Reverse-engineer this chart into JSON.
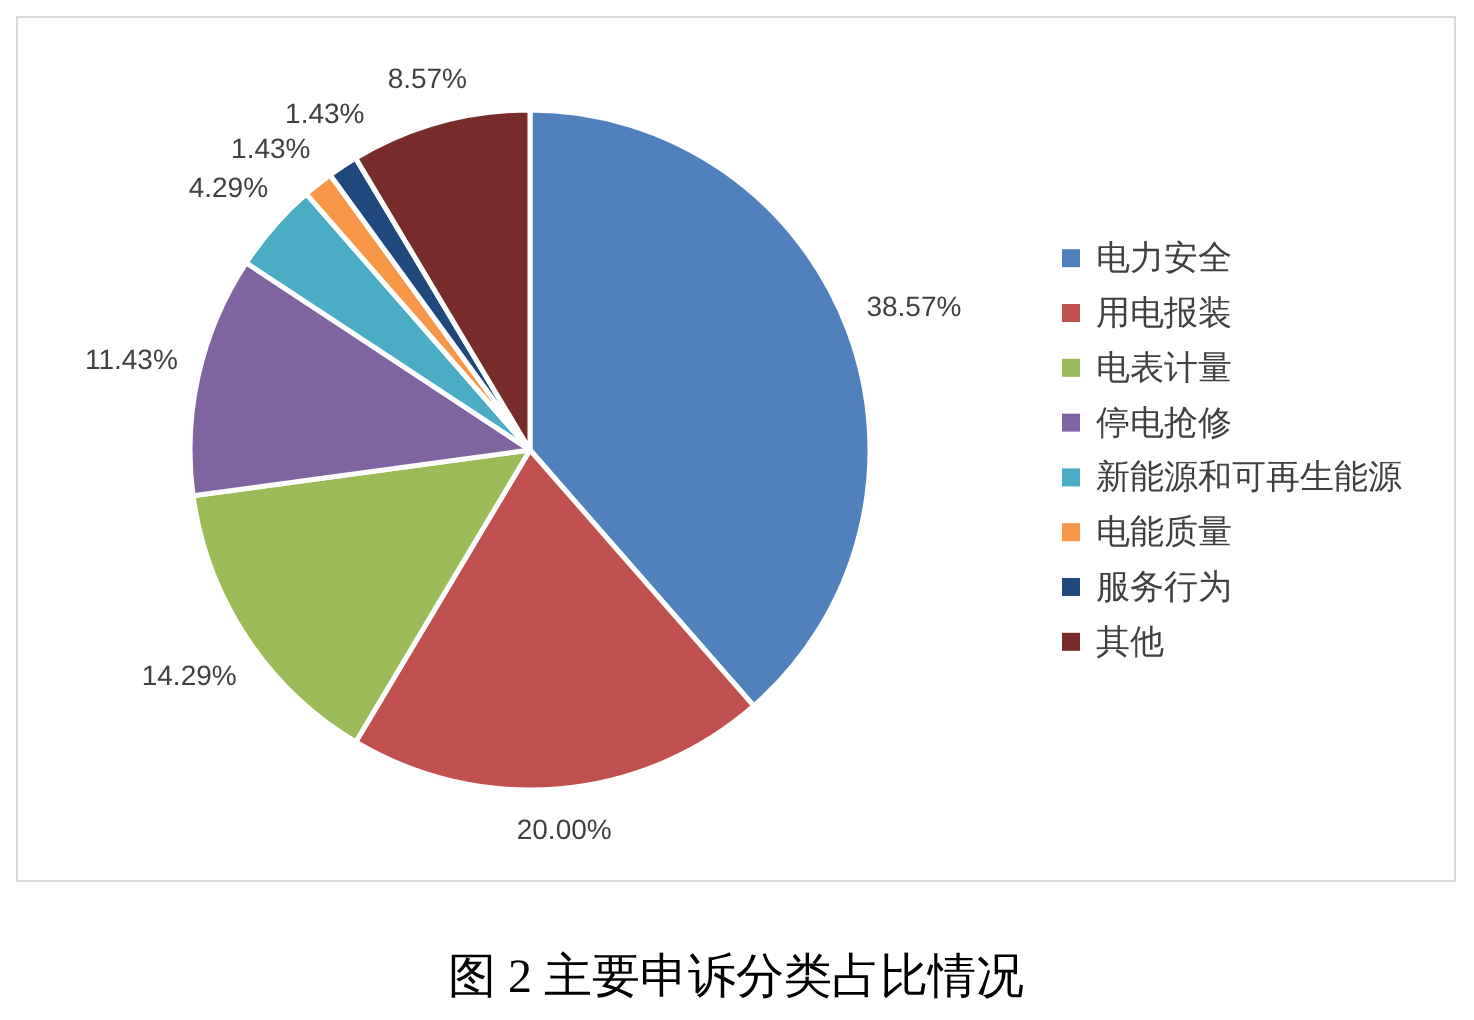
{
  "chart_data": {
    "type": "pie",
    "title": "图 2 主要申诉分类占比情况",
    "categories": [
      "电力安全",
      "用电报装",
      "电表计量",
      "停电抢修",
      "新能源和可再生能源",
      "电能质量",
      "服务行为",
      "其他"
    ],
    "values": [
      38.57,
      20.0,
      14.29,
      11.43,
      4.29,
      1.43,
      1.43,
      8.57
    ],
    "colors": [
      "#4f81bd",
      "#c0504d",
      "#9bbb59",
      "#8064a2",
      "#4bacc6",
      "#f79646",
      "#1f497d",
      "#772c2a"
    ],
    "value_labels": [
      "38.57%",
      "20.00%",
      "14.29%",
      "11.43%",
      "4.29%",
      "1.43%",
      "1.43%",
      "8.57%"
    ],
    "legend": "right"
  }
}
